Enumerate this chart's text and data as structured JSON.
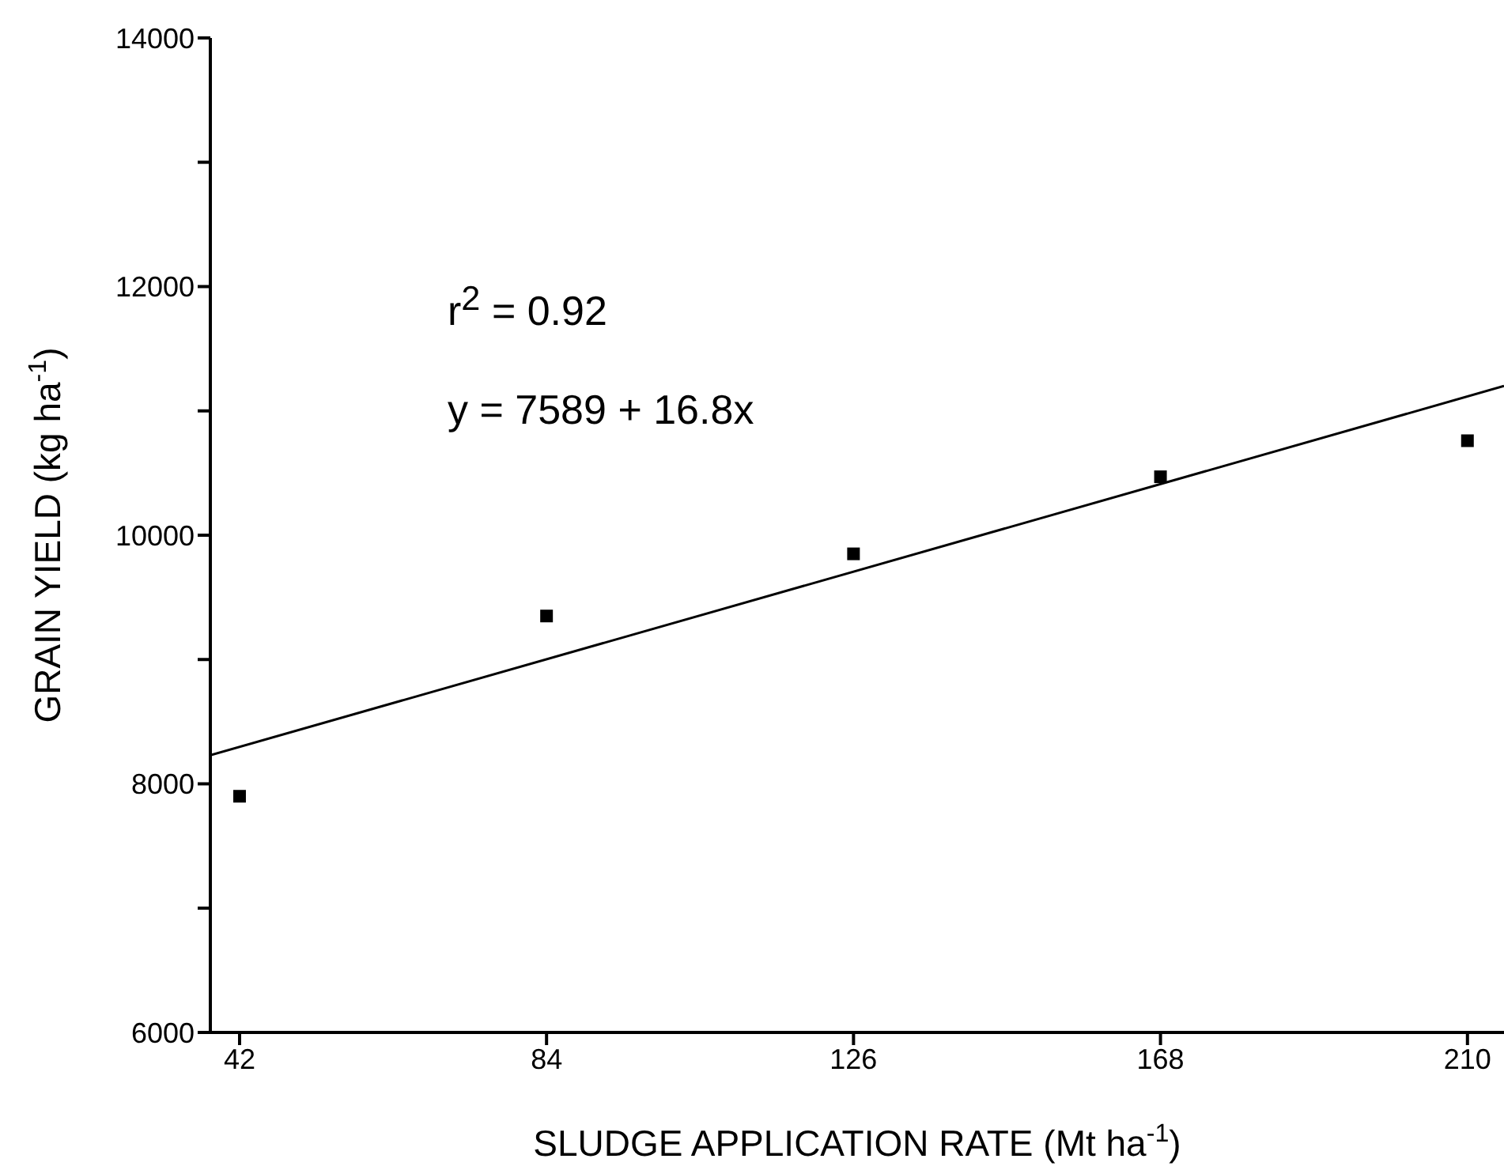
{
  "chart_data": {
    "type": "scatter",
    "xlabel": "SLUDGE APPLICATION RATE (Mt ha$^{-1}$)",
    "ylabel": "GRAIN YIELD (kg ha$^{-1}$)",
    "annotations": [
      "r$^{2}$ = 0.92",
      "y = 7589 + 16.8x"
    ],
    "xlim": [
      38,
      215
    ],
    "xticks": [
      42,
      84,
      126,
      168,
      210
    ],
    "ylim": [
      6000,
      14000
    ],
    "yticks": [
      6000,
      {
        "value": 7000,
        "label": null
      },
      8000,
      {
        "value": 9000,
        "label": null
      },
      10000,
      {
        "value": 11000,
        "label": null
      },
      12000,
      {
        "value": 13000,
        "label": null
      },
      14000
    ],
    "grid": false,
    "marker": "square",
    "series": [
      {
        "color": "#000000",
        "x": [
          42,
          84,
          126,
          168,
          210
        ],
        "values": [
          7900,
          9350,
          9850,
          10470,
          10760
        ]
      },
      {
        "type": "line",
        "color": "#000000",
        "marker": "none",
        "line_style": "solid",
        "x": [
          38,
          215
        ],
        "values": [
          8230,
          11200
        ]
      }
    ]
  }
}
